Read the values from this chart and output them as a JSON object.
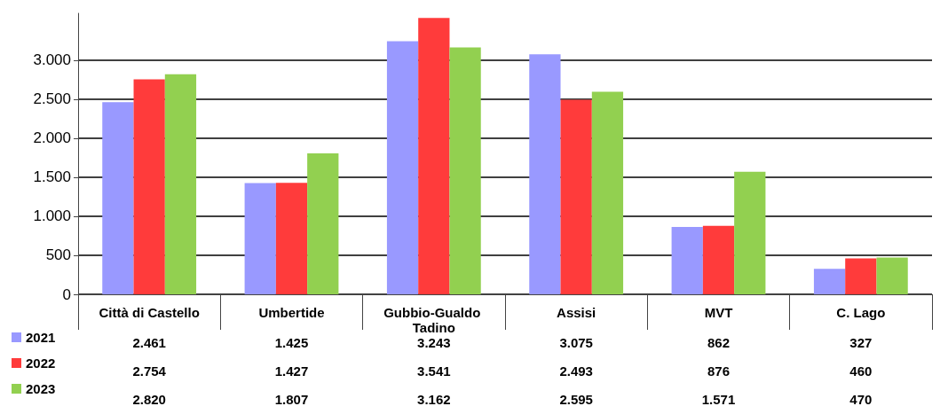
{
  "chart_data": {
    "type": "bar",
    "categories": [
      "Città di Castello",
      "Umbertide",
      "Gubbio-Gualdo Tadino",
      "Assisi",
      "MVT",
      "C. Lago"
    ],
    "series": [
      {
        "name": "2021",
        "color": "#9999ff",
        "values": [
          2461,
          1425,
          3243,
          3075,
          862,
          327
        ],
        "value_labels": [
          "2.461",
          "1.425",
          "3.243",
          "3.075",
          "862",
          "327"
        ]
      },
      {
        "name": "2022",
        "color": "#ff3b3b",
        "values": [
          2754,
          1427,
          3541,
          2493,
          876,
          460
        ],
        "value_labels": [
          "2.754",
          "1.427",
          "3.541",
          "2.493",
          "876",
          "460"
        ]
      },
      {
        "name": "2023",
        "color": "#92d050",
        "values": [
          2820,
          1807,
          3162,
          2595,
          1571,
          470
        ],
        "value_labels": [
          "2.820",
          "1.807",
          "3.162",
          "2.595",
          "1.571",
          "470"
        ]
      }
    ],
    "ylim": [
      0,
      3600
    ],
    "yticks": [
      0,
      500,
      {
        "value": 1000,
        "label": "1.000"
      },
      {
        "value": 1500,
        "label": "1.500"
      },
      {
        "value": 2000,
        "label": "2.000"
      },
      {
        "value": 2500,
        "label": "2.500"
      },
      {
        "value": 3000,
        "label": "3.000"
      }
    ],
    "grid": "y",
    "legend": "bottom"
  }
}
